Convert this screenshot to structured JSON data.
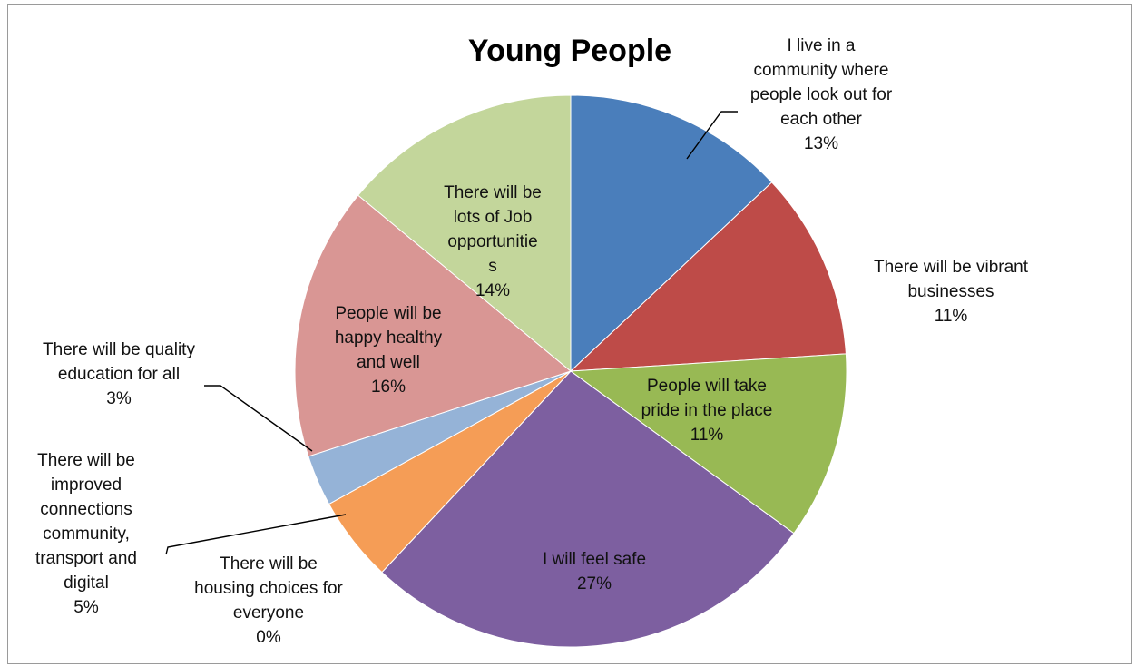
{
  "chart_data": {
    "type": "pie",
    "title": "Young People",
    "slices": [
      {
        "label": "I live in a community where people look out for each other",
        "value": 13,
        "value_label": "13%",
        "color": "#4a7ebb"
      },
      {
        "label": "There will be vibrant businesses",
        "value": 11,
        "value_label": "11%",
        "color": "#be4b48"
      },
      {
        "label": "People will take pride in the place",
        "value": 11,
        "value_label": "11%",
        "color": "#98b954"
      },
      {
        "label": "I will feel safe",
        "value": 27,
        "value_label": "27%",
        "color": "#7d5fa0"
      },
      {
        "label": "There will be housing choices for everyone",
        "value": 0,
        "value_label": "0%",
        "color": "#46aac5"
      },
      {
        "label": "There will be improved connections community, transport and digital",
        "value": 5,
        "value_label": "5%",
        "color": "#f59d56"
      },
      {
        "label": "There will be quality education for all",
        "value": 3,
        "value_label": "3%",
        "color": "#95b3d7"
      },
      {
        "label": "People will be happy healthy and well",
        "value": 16,
        "value_label": "16%",
        "color": "#d99694"
      },
      {
        "label": "There will be lots of Job opportunities",
        "value": 14,
        "value_label": "14%",
        "color": "#c3d69b"
      }
    ],
    "legend": "none"
  }
}
